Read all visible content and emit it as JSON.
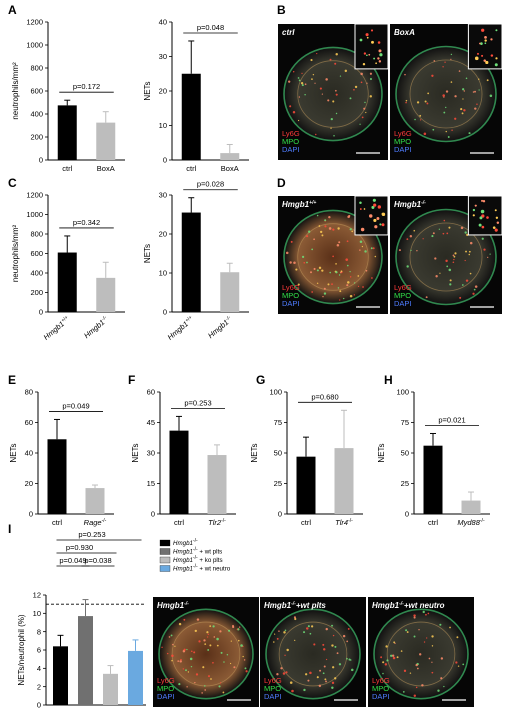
{
  "figure": {
    "colors": {
      "ctrl": "#000000",
      "treated": "#bdbdbd",
      "wt_plts": "#707070",
      "wt_neutro": "#6aa9e0",
      "ly6g": "#ff3b3b",
      "mpo": "#33e04a",
      "dapi": "#4f7dff"
    }
  },
  "chart_data": [
    {
      "id": "A1",
      "panel_label": "A",
      "type": "bar",
      "categories": [
        "ctrl",
        "BoxA"
      ],
      "values": [
        475,
        325
      ],
      "errors": [
        45,
        95
      ],
      "ylabel": "neutrophils/mm²",
      "ylim": [
        0,
        1200
      ],
      "yticks": [
        "0",
        "200",
        "400",
        "600",
        "800",
        "1000",
        "1200"
      ],
      "pvalues": [
        {
          "text": "p=0.172",
          "pair": [
            0,
            1
          ]
        }
      ]
    },
    {
      "id": "A2",
      "type": "bar",
      "categories": [
        "ctrl",
        "BoxA"
      ],
      "values": [
        25,
        2
      ],
      "errors": [
        9.5,
        2.5
      ],
      "ylabel": "NETs",
      "ylim": [
        0,
        40
      ],
      "yticks": [
        "0",
        "10",
        "20",
        "30",
        "40"
      ],
      "pvalues": [
        {
          "text": "p=0.048",
          "pair": [
            0,
            1
          ]
        }
      ]
    },
    {
      "id": "C1",
      "panel_label": "C",
      "type": "bar",
      "categories": [
        "Hmgb1+/+",
        "Hmgb1-/-"
      ],
      "values": [
        610,
        350
      ],
      "errors": [
        170,
        160
      ],
      "ylabel": "neutrophils/mm²",
      "ylim": [
        0,
        1200
      ],
      "yticks": [
        "0",
        "200",
        "400",
        "600",
        "800",
        "1000",
        "1200"
      ],
      "pvalues": [
        {
          "text": "p=0.342",
          "pair": [
            0,
            1
          ]
        }
      ]
    },
    {
      "id": "C2",
      "type": "bar",
      "categories": [
        "Hmgb1+/+",
        "Hmgb1-/-"
      ],
      "values": [
        25.5,
        10.2
      ],
      "errors": [
        3.8,
        2.3
      ],
      "ylabel": "NETs",
      "ylim": [
        0,
        30
      ],
      "yticks": [
        "0",
        "10",
        "20",
        "30"
      ],
      "pvalues": [
        {
          "text": "p=0.028",
          "pair": [
            0,
            1
          ]
        }
      ]
    },
    {
      "id": "E",
      "panel_label": "E",
      "type": "bar",
      "categories": [
        "ctrl",
        "Rage-/-"
      ],
      "values": [
        49,
        17
      ],
      "errors": [
        13,
        2
      ],
      "ylabel": "NETs",
      "ylim": [
        0,
        80
      ],
      "yticks": [
        "0",
        "20",
        "40",
        "60",
        "80"
      ],
      "pvalues": [
        {
          "text": "p=0.049",
          "pair": [
            0,
            1
          ]
        }
      ]
    },
    {
      "id": "F",
      "panel_label": "F",
      "type": "bar",
      "categories": [
        "ctrl",
        "Tlr2-/-"
      ],
      "values": [
        41,
        29
      ],
      "errors": [
        7,
        5
      ],
      "ylabel": "NETs",
      "ylim": [
        0,
        60
      ],
      "yticks": [
        "0",
        "15",
        "30",
        "45",
        "60"
      ],
      "pvalues": [
        {
          "text": "p=0.253",
          "pair": [
            0,
            1
          ]
        }
      ]
    },
    {
      "id": "G",
      "panel_label": "G",
      "type": "bar",
      "categories": [
        "ctrl",
        "Tlr4-/-"
      ],
      "values": [
        47,
        54
      ],
      "errors": [
        16,
        31
      ],
      "ylabel": "NETs",
      "ylim": [
        0,
        100
      ],
      "yticks": [
        "0",
        "25",
        "50",
        "75",
        "100"
      ],
      "pvalues": [
        {
          "text": "p=0.680",
          "pair": [
            0,
            1
          ]
        }
      ]
    },
    {
      "id": "H",
      "panel_label": "H",
      "type": "bar",
      "categories": [
        "ctrl",
        "Myd88-/-"
      ],
      "values": [
        56,
        11
      ],
      "errors": [
        10,
        7
      ],
      "ylabel": "NETs",
      "ylim": [
        0,
        100
      ],
      "yticks": [
        "0",
        "25",
        "50",
        "75",
        "100"
      ],
      "pvalues": [
        {
          "text": "p=0.021",
          "pair": [
            0,
            1
          ]
        }
      ]
    },
    {
      "id": "I",
      "panel_label": "I",
      "type": "bar",
      "categories": [
        "Hmgb1-/-",
        "Hmgb1-/- + wt plts",
        "Hmgb1-/- + ko plts",
        "Hmgb1-/- + wt neutro"
      ],
      "values": [
        6.4,
        9.7,
        3.4,
        5.9
      ],
      "errors": [
        1.2,
        1.8,
        0.9,
        1.2
      ],
      "ylabel": "NETs/neutrophil (%)",
      "ylim": [
        0,
        12
      ],
      "yticks": [
        "0",
        "2",
        "4",
        "6",
        "8",
        "10",
        "12"
      ],
      "reference_line": 11,
      "pvalues": [
        {
          "text": "p=0.253",
          "pair": [
            0,
            3
          ]
        },
        {
          "text": "p=0.930",
          "pair": [
            0,
            2
          ]
        },
        {
          "text": "p=0.049",
          "pair": [
            0,
            1
          ]
        },
        {
          "text": "p=0.038",
          "pair": [
            1,
            2
          ]
        }
      ],
      "legend": [
        "Hmgb1-/-",
        "Hmgb1-/- + wt plts",
        "Hmgb1-/- + ko plts",
        "Hmgb1-/- + wt neutro"
      ]
    }
  ],
  "micrographs": {
    "B": {
      "panel_label": "B",
      "images": [
        {
          "title": "ctrl"
        },
        {
          "title": "BoxA"
        }
      ]
    },
    "D": {
      "panel_label": "D",
      "images": [
        {
          "title": "Hmgb1+/+"
        },
        {
          "title": "Hmgb1-/-"
        }
      ]
    },
    "I": {
      "images": [
        {
          "title": "Hmgb1-/-"
        },
        {
          "title": "Hmgb1-/-+wt plts"
        },
        {
          "title": "Hmgb1-/-+wt neutro"
        }
      ]
    },
    "markers": [
      "Ly6G",
      "MPO",
      "DAPI"
    ]
  }
}
